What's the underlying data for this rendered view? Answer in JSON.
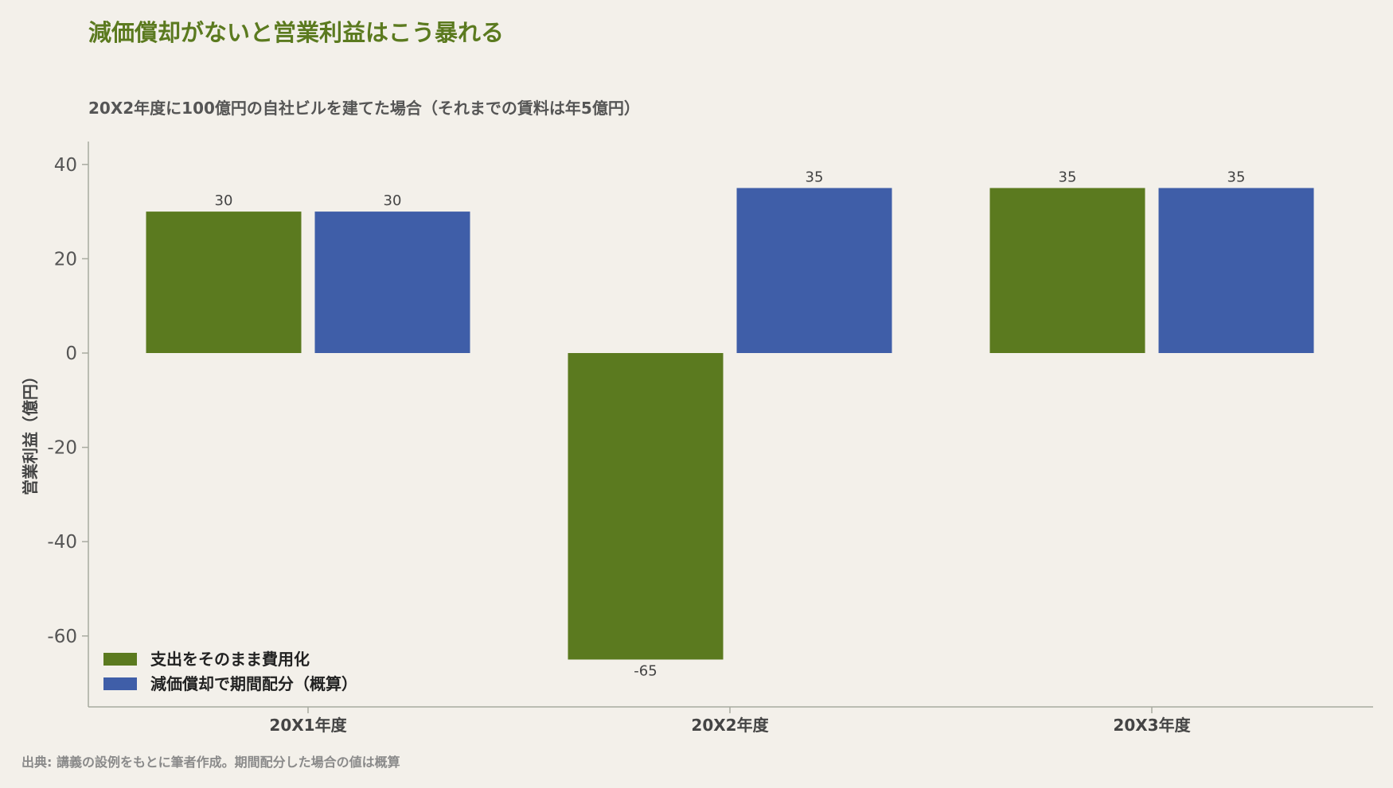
{
  "chart_data": {
    "type": "bar",
    "title": "減価償却がないと営業利益はこう暴れる",
    "subtitle": "20X2年度に100億円の自社ビルを建てた場合（それまでの賃料は年5億円）",
    "ylabel": "営業利益（億円）",
    "xlabel": "",
    "categories": [
      "20X1年度",
      "20X2年度",
      "20X3年度"
    ],
    "series": [
      {
        "name": "支出をそのまま費用化",
        "values": [
          30,
          -65,
          35
        ],
        "color": "#5b7a1f"
      },
      {
        "name": "減価償却で期間配分（概算）",
        "values": [
          30,
          35,
          35
        ],
        "color": "#3f5ea8"
      }
    ],
    "ylim": [
      -75,
      45
    ],
    "yticks": [
      40,
      20,
      0,
      -20,
      -40,
      -60
    ],
    "grid": false,
    "legend_position": "bottom-left",
    "source": "出典: 講義の設例をもとに筆者作成。期間配分した場合の値は概算"
  }
}
